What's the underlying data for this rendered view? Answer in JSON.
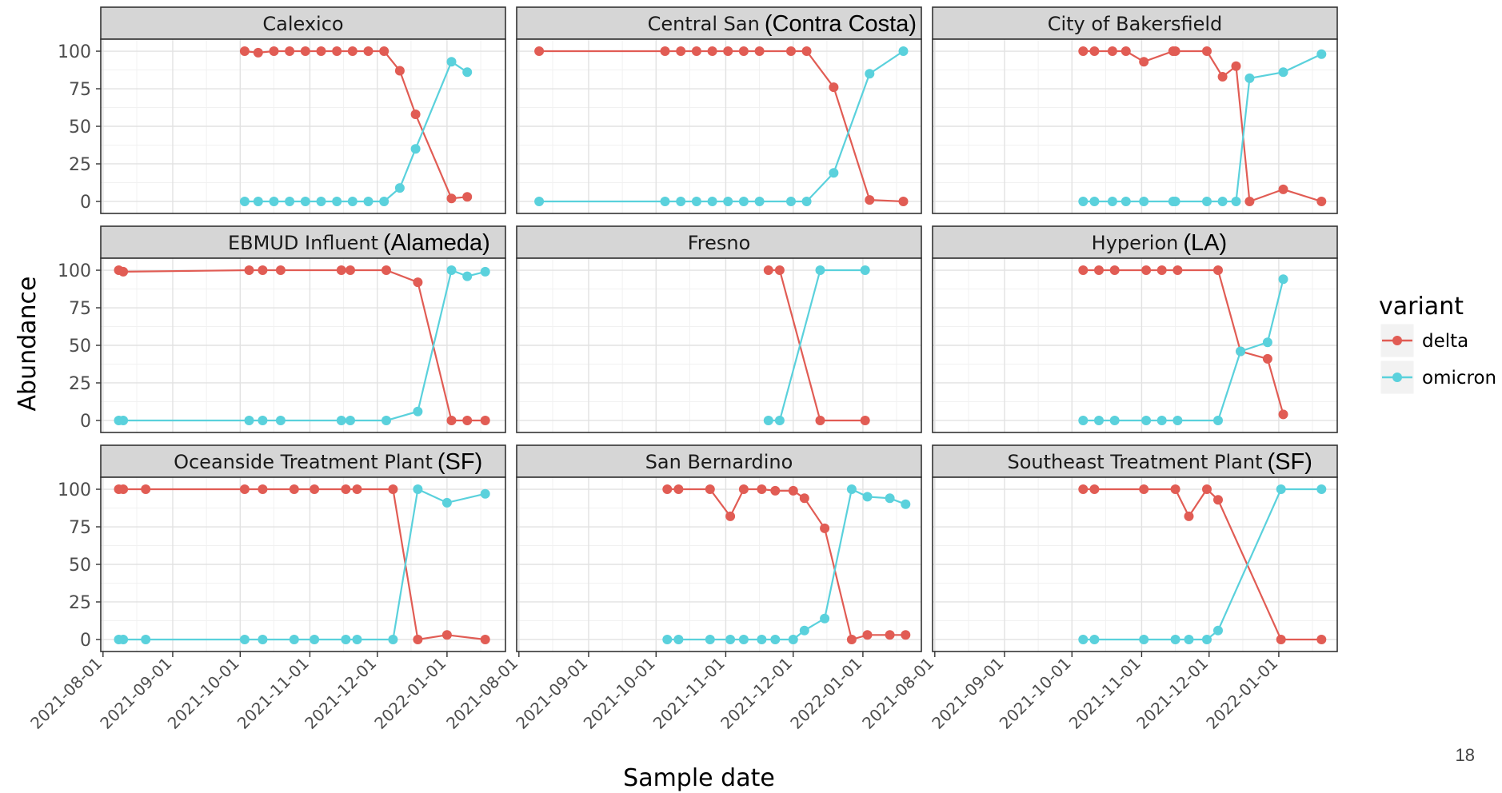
{
  "page_number": "18",
  "chart_data": {
    "type": "line",
    "facet_layout": "3x3 grid",
    "xlabel": "Sample date",
    "ylabel": "Abundance",
    "ylim": [
      -8,
      108
    ],
    "y_ticks": [
      0,
      25,
      50,
      75,
      100
    ],
    "x_range": [
      "2021-07-31",
      "2022-01-27"
    ],
    "x_ticks": [
      "2021-08-01",
      "2021-09-01",
      "2021-10-01",
      "2021-11-01",
      "2021-12-01",
      "2022-01-01"
    ],
    "grid": true,
    "legend": {
      "title": "variant",
      "position": "right",
      "entries": [
        {
          "name": "delta",
          "color": "#e15c54"
        },
        {
          "name": "omicron",
          "color": "#5ad1dc"
        }
      ]
    },
    "series_colors": {
      "delta": "#e15c54",
      "omicron": "#5ad1dc"
    },
    "panels": [
      {
        "title": "Calexico",
        "title_suffix": "",
        "delta": [
          [
            "2021-10-03",
            100
          ],
          [
            "2021-10-09",
            99
          ],
          [
            "2021-10-16",
            100
          ],
          [
            "2021-10-23",
            100
          ],
          [
            "2021-10-30",
            100
          ],
          [
            "2021-11-06",
            100
          ],
          [
            "2021-11-13",
            100
          ],
          [
            "2021-11-20",
            100
          ],
          [
            "2021-11-27",
            100
          ],
          [
            "2021-12-04",
            100
          ],
          [
            "2021-12-11",
            87
          ],
          [
            "2021-12-18",
            58
          ],
          [
            "2022-01-03",
            2
          ],
          [
            "2022-01-10",
            3
          ]
        ],
        "omicron": [
          [
            "2021-10-03",
            0
          ],
          [
            "2021-10-09",
            0
          ],
          [
            "2021-10-16",
            0
          ],
          [
            "2021-10-23",
            0
          ],
          [
            "2021-10-30",
            0
          ],
          [
            "2021-11-06",
            0
          ],
          [
            "2021-11-13",
            0
          ],
          [
            "2021-11-20",
            0
          ],
          [
            "2021-11-27",
            0
          ],
          [
            "2021-12-04",
            0
          ],
          [
            "2021-12-11",
            9
          ],
          [
            "2021-12-18",
            35
          ],
          [
            "2022-01-03",
            93
          ],
          [
            "2022-01-10",
            86
          ]
        ]
      },
      {
        "title": "Central San",
        "title_suffix": "(Contra Costa)",
        "delta": [
          [
            "2021-08-10",
            100
          ],
          [
            "2021-10-05",
            100
          ],
          [
            "2021-10-12",
            100
          ],
          [
            "2021-10-19",
            100
          ],
          [
            "2021-10-26",
            100
          ],
          [
            "2021-11-02",
            100
          ],
          [
            "2021-11-09",
            100
          ],
          [
            "2021-11-16",
            100
          ],
          [
            "2021-11-30",
            100
          ],
          [
            "2021-12-07",
            100
          ],
          [
            "2021-12-19",
            76
          ],
          [
            "2022-01-04",
            1
          ],
          [
            "2022-01-19",
            0
          ]
        ],
        "omicron": [
          [
            "2021-08-10",
            0
          ],
          [
            "2021-10-05",
            0
          ],
          [
            "2021-10-12",
            0
          ],
          [
            "2021-10-19",
            0
          ],
          [
            "2021-10-26",
            0
          ],
          [
            "2021-11-02",
            0
          ],
          [
            "2021-11-09",
            0
          ],
          [
            "2021-11-16",
            0
          ],
          [
            "2021-11-30",
            0
          ],
          [
            "2021-12-07",
            0
          ],
          [
            "2021-12-19",
            19
          ],
          [
            "2022-01-04",
            85
          ],
          [
            "2022-01-19",
            100
          ]
        ]
      },
      {
        "title": "City of Bakersfield",
        "title_suffix": "",
        "delta": [
          [
            "2021-10-06",
            100
          ],
          [
            "2021-10-11",
            100
          ],
          [
            "2021-10-19",
            100
          ],
          [
            "2021-10-25",
            100
          ],
          [
            "2021-11-02",
            93
          ],
          [
            "2021-11-15",
            100
          ],
          [
            "2021-11-16",
            100
          ],
          [
            "2021-11-30",
            100
          ],
          [
            "2021-12-07",
            83
          ],
          [
            "2021-12-13",
            90
          ],
          [
            "2021-12-19",
            0
          ],
          [
            "2022-01-03",
            8
          ],
          [
            "2022-01-20",
            0
          ]
        ],
        "omicron": [
          [
            "2021-10-06",
            0
          ],
          [
            "2021-10-11",
            0
          ],
          [
            "2021-10-19",
            0
          ],
          [
            "2021-10-25",
            0
          ],
          [
            "2021-11-02",
            0
          ],
          [
            "2021-11-15",
            0
          ],
          [
            "2021-11-16",
            0
          ],
          [
            "2021-11-30",
            0
          ],
          [
            "2021-12-07",
            0
          ],
          [
            "2021-12-13",
            0
          ],
          [
            "2021-12-19",
            82
          ],
          [
            "2022-01-03",
            86
          ],
          [
            "2022-01-20",
            98
          ]
        ]
      },
      {
        "title": "EBMUD Influent",
        "title_suffix": "(Alameda)",
        "delta": [
          [
            "2021-08-08",
            100
          ],
          [
            "2021-08-10",
            99
          ],
          [
            "2021-10-05",
            100
          ],
          [
            "2021-10-11",
            100
          ],
          [
            "2021-10-19",
            100
          ],
          [
            "2021-11-15",
            100
          ],
          [
            "2021-11-19",
            100
          ],
          [
            "2021-12-05",
            100
          ],
          [
            "2021-12-19",
            92
          ],
          [
            "2022-01-03",
            0
          ],
          [
            "2022-01-10",
            0
          ],
          [
            "2022-01-18",
            0
          ]
        ],
        "omicron": [
          [
            "2021-08-08",
            0
          ],
          [
            "2021-08-10",
            0
          ],
          [
            "2021-10-05",
            0
          ],
          [
            "2021-10-11",
            0
          ],
          [
            "2021-10-19",
            0
          ],
          [
            "2021-11-15",
            0
          ],
          [
            "2021-11-19",
            0
          ],
          [
            "2021-12-05",
            0
          ],
          [
            "2021-12-19",
            6
          ],
          [
            "2022-01-03",
            100
          ],
          [
            "2022-01-10",
            96
          ],
          [
            "2022-01-18",
            99
          ]
        ]
      },
      {
        "title": "Fresno",
        "title_suffix": "",
        "delta": [
          [
            "2021-11-20",
            100
          ],
          [
            "2021-11-25",
            100
          ],
          [
            "2021-12-13",
            0
          ],
          [
            "2022-01-02",
            0
          ]
        ],
        "omicron": [
          [
            "2021-11-20",
            0
          ],
          [
            "2021-11-25",
            0
          ],
          [
            "2021-12-13",
            100
          ],
          [
            "2022-01-02",
            100
          ]
        ]
      },
      {
        "title": "Hyperion",
        "title_suffix": "(LA)",
        "delta": [
          [
            "2021-10-06",
            100
          ],
          [
            "2021-10-13",
            100
          ],
          [
            "2021-10-20",
            100
          ],
          [
            "2021-11-03",
            100
          ],
          [
            "2021-11-10",
            100
          ],
          [
            "2021-11-17",
            100
          ],
          [
            "2021-12-05",
            100
          ],
          [
            "2021-12-15",
            46
          ],
          [
            "2021-12-27",
            41
          ],
          [
            "2022-01-03",
            4
          ]
        ],
        "omicron": [
          [
            "2021-10-06",
            0
          ],
          [
            "2021-10-13",
            0
          ],
          [
            "2021-10-20",
            0
          ],
          [
            "2021-11-03",
            0
          ],
          [
            "2021-11-10",
            0
          ],
          [
            "2021-11-17",
            0
          ],
          [
            "2021-12-05",
            0
          ],
          [
            "2021-12-15",
            46
          ],
          [
            "2021-12-27",
            52
          ],
          [
            "2022-01-03",
            94
          ]
        ]
      },
      {
        "title": "Oceanside Treatment Plant",
        "title_suffix": "(SF)",
        "delta": [
          [
            "2021-08-08",
            100
          ],
          [
            "2021-08-10",
            100
          ],
          [
            "2021-08-20",
            100
          ],
          [
            "2021-10-03",
            100
          ],
          [
            "2021-10-11",
            100
          ],
          [
            "2021-10-25",
            100
          ],
          [
            "2021-11-03",
            100
          ],
          [
            "2021-11-17",
            100
          ],
          [
            "2021-11-22",
            100
          ],
          [
            "2021-12-08",
            100
          ],
          [
            "2021-12-19",
            0
          ],
          [
            "2022-01-01",
            3
          ],
          [
            "2022-01-18",
            0
          ]
        ],
        "omicron": [
          [
            "2021-08-08",
            0
          ],
          [
            "2021-08-10",
            0
          ],
          [
            "2021-08-20",
            0
          ],
          [
            "2021-10-03",
            0
          ],
          [
            "2021-10-11",
            0
          ],
          [
            "2021-10-25",
            0
          ],
          [
            "2021-11-03",
            0
          ],
          [
            "2021-11-17",
            0
          ],
          [
            "2021-11-22",
            0
          ],
          [
            "2021-12-08",
            0
          ],
          [
            "2021-12-19",
            100
          ],
          [
            "2022-01-01",
            91
          ],
          [
            "2022-01-18",
            97
          ]
        ]
      },
      {
        "title": "San Bernardino",
        "title_suffix": "",
        "delta": [
          [
            "2021-10-06",
            100
          ],
          [
            "2021-10-11",
            100
          ],
          [
            "2021-10-25",
            100
          ],
          [
            "2021-11-03",
            82
          ],
          [
            "2021-11-09",
            100
          ],
          [
            "2021-11-17",
            100
          ],
          [
            "2021-11-23",
            99
          ],
          [
            "2021-12-01",
            99
          ],
          [
            "2021-12-06",
            94
          ],
          [
            "2021-12-15",
            74
          ],
          [
            "2021-12-27",
            0
          ],
          [
            "2022-01-03",
            3
          ],
          [
            "2022-01-13",
            3
          ],
          [
            "2022-01-20",
            3
          ]
        ],
        "omicron": [
          [
            "2021-10-06",
            0
          ],
          [
            "2021-10-11",
            0
          ],
          [
            "2021-10-25",
            0
          ],
          [
            "2021-11-03",
            0
          ],
          [
            "2021-11-09",
            0
          ],
          [
            "2021-11-17",
            0
          ],
          [
            "2021-11-23",
            0
          ],
          [
            "2021-12-01",
            0
          ],
          [
            "2021-12-06",
            6
          ],
          [
            "2021-12-15",
            14
          ],
          [
            "2021-12-27",
            100
          ],
          [
            "2022-01-03",
            95
          ],
          [
            "2022-01-13",
            94
          ],
          [
            "2022-01-20",
            90
          ]
        ]
      },
      {
        "title": "Southeast Treatment Plant",
        "title_suffix": "(SF)",
        "delta": [
          [
            "2021-10-06",
            100
          ],
          [
            "2021-10-11",
            100
          ],
          [
            "2021-11-02",
            100
          ],
          [
            "2021-11-16",
            100
          ],
          [
            "2021-11-22",
            82
          ],
          [
            "2021-11-30",
            100
          ],
          [
            "2021-12-05",
            93
          ],
          [
            "2022-01-02",
            0
          ],
          [
            "2022-01-20",
            0
          ]
        ],
        "omicron": [
          [
            "2021-10-06",
            0
          ],
          [
            "2021-10-11",
            0
          ],
          [
            "2021-11-02",
            0
          ],
          [
            "2021-11-16",
            0
          ],
          [
            "2021-11-22",
            0
          ],
          [
            "2021-11-30",
            0
          ],
          [
            "2021-12-05",
            6
          ],
          [
            "2022-01-02",
            100
          ],
          [
            "2022-01-20",
            100
          ]
        ]
      }
    ]
  }
}
